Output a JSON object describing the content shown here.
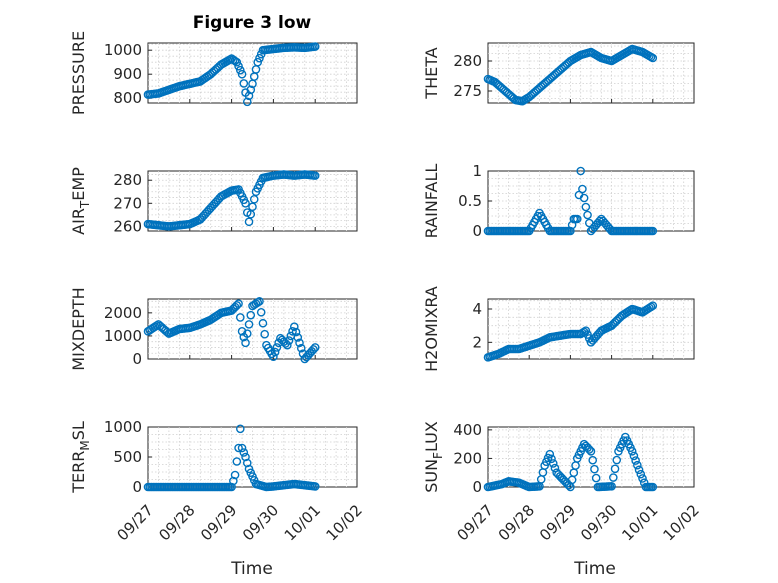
{
  "figure": {
    "title": "Figure 3 low",
    "marker_color": "#0072BD",
    "left_xlabel": "Time",
    "right_xlabel": "Time"
  },
  "chart_data": [
    {
      "type": "scatter",
      "ylabel": "PRESSURE",
      "ylabel_sub": "",
      "ylabel_rest": "",
      "ylim": [
        780,
        1030
      ],
      "yticks": [
        800,
        900,
        1000
      ],
      "xlim": [
        "09/27",
        "10/02"
      ],
      "xticks": [],
      "grid": true,
      "x": [
        "09/27 00:00",
        "09/27 06:00",
        "09/27 12:00",
        "09/27 18:00",
        "09/28 00:00",
        "09/28 06:00",
        "09/28 12:00",
        "09/28 18:00",
        "09/29 00:00",
        "09/29 03:00",
        "09/29 06:00",
        "09/29 09:00",
        "09/29 12:00",
        "09/29 15:00",
        "09/29 18:00",
        "09/30 00:00",
        "09/30 06:00",
        "09/30 12:00",
        "09/30 18:00",
        "10/01 00:00"
      ],
      "y": [
        815,
        820,
        835,
        850,
        860,
        870,
        900,
        940,
        965,
        950,
        900,
        785,
        860,
        950,
        1000,
        1005,
        1010,
        1012,
        1010,
        1015
      ]
    },
    {
      "type": "scatter",
      "ylabel": "THETA",
      "ylabel_sub": "",
      "ylabel_rest": "",
      "ylim": [
        273,
        283
      ],
      "yticks": [
        275,
        280
      ],
      "xlim": [
        "09/27",
        "10/02"
      ],
      "xticks": [],
      "grid": true,
      "x": [
        "09/27 00:00",
        "09/27 04:00",
        "09/27 08:00",
        "09/27 12:00",
        "09/27 16:00",
        "09/27 20:00",
        "09/28 00:00",
        "09/28 04:00",
        "09/28 08:00",
        "09/28 12:00",
        "09/28 16:00",
        "09/28 20:00",
        "09/29 00:00",
        "09/29 06:00",
        "09/29 12:00",
        "09/29 18:00",
        "09/30 00:00",
        "09/30 06:00",
        "09/30 12:00",
        "09/30 18:00",
        "10/01 00:00"
      ],
      "y": [
        277,
        276.5,
        275.5,
        274.5,
        273.5,
        273.3,
        274,
        275,
        276,
        277,
        278,
        279,
        280,
        281,
        281.5,
        280.5,
        280,
        281,
        282,
        281.5,
        280.5
      ]
    },
    {
      "type": "scatter",
      "ylabel": "AIR",
      "ylabel_sub": "T",
      "ylabel_rest": "EMP",
      "ylim": [
        258,
        284
      ],
      "yticks": [
        260,
        270,
        280
      ],
      "xlim": [
        "09/27",
        "10/02"
      ],
      "xticks": [],
      "grid": true,
      "x": [
        "09/27 00:00",
        "09/27 06:00",
        "09/27 12:00",
        "09/27 18:00",
        "09/28 00:00",
        "09/28 06:00",
        "09/28 12:00",
        "09/28 18:00",
        "09/29 00:00",
        "09/29 04:00",
        "09/29 08:00",
        "09/29 10:00",
        "09/29 14:00",
        "09/29 18:00",
        "09/30 00:00",
        "09/30 06:00",
        "09/30 12:00",
        "09/30 18:00",
        "10/01 00:00"
      ],
      "y": [
        261,
        260.5,
        260,
        260.5,
        261,
        263,
        268,
        273,
        275.5,
        276,
        270,
        262,
        275,
        281,
        282,
        282.5,
        282,
        282.5,
        282
      ]
    },
    {
      "type": "scatter",
      "ylabel": "RAINFALL",
      "ylabel_sub": "",
      "ylabel_rest": "",
      "ylim": [
        0,
        1
      ],
      "yticks": [
        0,
        0.5,
        1
      ],
      "xlim": [
        "09/27",
        "10/02"
      ],
      "xticks": [],
      "grid": true,
      "x": [
        "09/27 00:00",
        "09/27 12:00",
        "09/28 00:00",
        "09/28 06:00",
        "09/28 12:00",
        "09/29 00:00",
        "09/29 02:00",
        "09/29 04:00",
        "09/29 06:00",
        "09/29 07:00",
        "09/29 09:00",
        "09/29 12:00",
        "09/29 18:00",
        "09/30 00:00",
        "09/30 12:00",
        "10/01 00:00"
      ],
      "y": [
        0,
        0,
        0,
        0.3,
        0,
        0,
        0.2,
        0.2,
        1.0,
        0.7,
        0.4,
        0,
        0.2,
        0,
        0,
        0
      ]
    },
    {
      "type": "scatter",
      "ylabel": "MIXDEPTH",
      "ylabel_sub": "",
      "ylabel_rest": "",
      "ylim": [
        0,
        2600
      ],
      "yticks": [
        0,
        1000,
        2000
      ],
      "xlim": [
        "09/27",
        "10/02"
      ],
      "xticks": [],
      "grid": true,
      "x": [
        "09/27 00:00",
        "09/27 06:00",
        "09/27 12:00",
        "09/27 18:00",
        "09/28 00:00",
        "09/28 06:00",
        "09/28 12:00",
        "09/28 18:00",
        "09/29 00:00",
        "09/29 04:00",
        "09/29 06:00",
        "09/29 08:00",
        "09/29 12:00",
        "09/29 16:00",
        "09/29 20:00",
        "09/30 00:00",
        "09/30 04:00",
        "09/30 08:00",
        "09/30 12:00",
        "09/30 18:00",
        "10/01 00:00"
      ],
      "y": [
        1200,
        1500,
        1100,
        1300,
        1350,
        1500,
        1700,
        2000,
        2100,
        2400,
        1200,
        700,
        2300,
        2500,
        600,
        100,
        900,
        600,
        1400,
        0,
        500
      ]
    },
    {
      "type": "scatter",
      "ylabel": "H2OMIXRA",
      "ylabel_sub": "",
      "ylabel_rest": "",
      "ylim": [
        1,
        4.6
      ],
      "yticks": [
        2,
        4
      ],
      "xlim": [
        "09/27",
        "10/02"
      ],
      "xticks": [],
      "grid": true,
      "x": [
        "09/27 00:00",
        "09/27 06:00",
        "09/27 12:00",
        "09/27 18:00",
        "09/28 00:00",
        "09/28 06:00",
        "09/28 12:00",
        "09/28 18:00",
        "09/29 00:00",
        "09/29 06:00",
        "09/29 09:00",
        "09/29 12:00",
        "09/29 18:00",
        "09/30 00:00",
        "09/30 06:00",
        "09/30 12:00",
        "09/30 18:00",
        "10/01 00:00"
      ],
      "y": [
        1.1,
        1.3,
        1.6,
        1.6,
        1.8,
        2.0,
        2.3,
        2.4,
        2.5,
        2.5,
        2.7,
        2.0,
        2.7,
        3.0,
        3.6,
        4.0,
        3.8,
        4.2
      ]
    },
    {
      "type": "scatter",
      "ylabel": "TERR",
      "ylabel_sub": "M",
      "ylabel_rest": "SL",
      "ylim": [
        0,
        1000
      ],
      "yticks": [
        0,
        500,
        1000
      ],
      "xlim": [
        "09/27",
        "10/02"
      ],
      "xticks": [
        "09/27",
        "09/28",
        "09/29",
        "09/30",
        "10/01",
        "10/02"
      ],
      "grid": true,
      "x": [
        "09/27 00:00",
        "09/27 12:00",
        "09/28 00:00",
        "09/28 12:00",
        "09/29 00:00",
        "09/29 02:00",
        "09/29 04:00",
        "09/29 05:00",
        "09/29 06:00",
        "09/29 08:00",
        "09/29 10:00",
        "09/29 14:00",
        "09/29 20:00",
        "09/30 00:00",
        "09/30 12:00",
        "09/30 18:00",
        "10/01 00:00"
      ],
      "y": [
        0,
        0,
        0,
        0,
        0,
        200,
        650,
        970,
        650,
        500,
        300,
        50,
        0,
        10,
        50,
        30,
        10
      ]
    },
    {
      "type": "scatter",
      "ylabel": "SUN",
      "ylabel_sub": "F",
      "ylabel_rest": "LUX",
      "ylim": [
        0,
        420
      ],
      "yticks": [
        0,
        200,
        400
      ],
      "xlim": [
        "09/27",
        "10/02"
      ],
      "xticks": [
        "09/27",
        "09/28",
        "09/29",
        "09/30",
        "10/01",
        "10/02"
      ],
      "grid": true,
      "x": [
        "09/27 00:00",
        "09/27 08:00",
        "09/27 12:00",
        "09/27 18:00",
        "09/28 00:00",
        "09/28 06:00",
        "09/28 09:00",
        "09/28 12:00",
        "09/28 16:00",
        "09/29 00:00",
        "09/29 04:00",
        "09/29 08:00",
        "09/29 12:00",
        "09/29 16:00",
        "09/30 00:00",
        "09/30 04:00",
        "09/30 08:00",
        "09/30 12:00",
        "09/30 16:00",
        "09/30 20:00",
        "10/01 00:00"
      ],
      "y": [
        0,
        20,
        40,
        30,
        0,
        5,
        150,
        230,
        100,
        0,
        200,
        300,
        250,
        0,
        5,
        250,
        350,
        250,
        120,
        0,
        0
      ]
    }
  ]
}
